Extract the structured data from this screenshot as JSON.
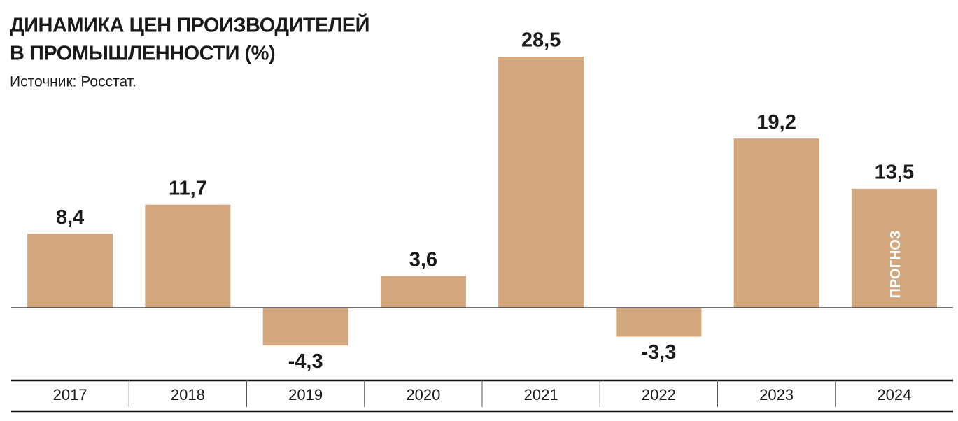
{
  "chart_data": {
    "type": "bar",
    "title": [
      "ДИНАМИКА ЦЕН ПРОИЗВОДИТЕЛЕЙ",
      "В ПРОМЫШЛЕННОСТИ (%)"
    ],
    "subtitle": "Источник: Росстат.",
    "categories": [
      "2017",
      "2018",
      "2019",
      "2020",
      "2021",
      "2022",
      "2023",
      "2024"
    ],
    "values": [
      8.4,
      11.7,
      -4.3,
      3.6,
      28.5,
      -3.3,
      19.2,
      13.5
    ],
    "value_labels": [
      "8,4",
      "11,7",
      "-4,3",
      "3,6",
      "28,5",
      "-3,3",
      "19,2",
      "13,5"
    ],
    "annotation": "ПРОГНОЗ",
    "color": "#d2a77e"
  }
}
